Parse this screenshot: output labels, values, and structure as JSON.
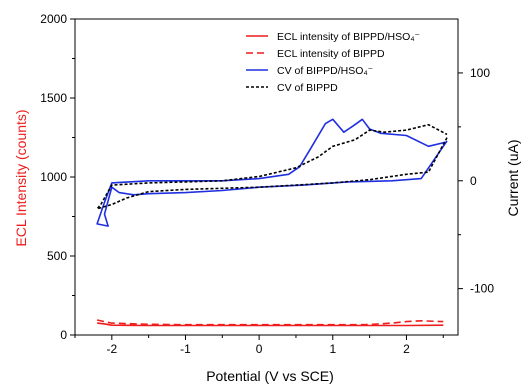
{
  "chart_data": {
    "type": "line",
    "xlabel": "Potential (V vs SCE)",
    "ylabel_left": "ECL Intensity (counts)",
    "ylabel_right": "Current (uA)",
    "xlim": [
      -2.5,
      2.7
    ],
    "ylim_left": [
      0,
      2000
    ],
    "ylim_right": [
      -143,
      150
    ],
    "x_ticks": [
      "-2",
      "-1",
      "0",
      "1",
      "2"
    ],
    "y_left_ticks": [
      "0",
      "500",
      "1000",
      "1500",
      "2000"
    ],
    "y_right_ticks": [
      "-100",
      "0",
      "100"
    ],
    "grid": false,
    "legend_position": "top-right",
    "colors": {
      "ecl_hso4": "#ee1c1c",
      "ecl_bippd": "#ee1c1c",
      "cv_hso4": "#1f2fe0",
      "cv_bippd": "#000000",
      "left_axis_label": "#ee1c1c"
    },
    "series": [
      {
        "name": "ECL intensity of BIPPD/HSO₄⁻",
        "axis": "left",
        "style": "solid",
        "x": [
          -2.2,
          -2.1,
          -2.0,
          -1.5,
          -1.0,
          -0.5,
          0.0,
          0.5,
          1.0,
          1.5,
          2.0,
          2.5
        ],
        "y": [
          75,
          70,
          62,
          60,
          60,
          60,
          60,
          60,
          60,
          60,
          60,
          62
        ]
      },
      {
        "name": "ECL intensity of BIPPD",
        "axis": "left",
        "style": "dashed",
        "x": [
          -2.2,
          -2.1,
          -2.0,
          -1.5,
          -1.0,
          -0.5,
          0.0,
          0.5,
          1.0,
          1.5,
          1.8,
          2.0,
          2.2,
          2.5
        ],
        "y": [
          95,
          85,
          75,
          68,
          65,
          65,
          65,
          65,
          65,
          66,
          75,
          85,
          90,
          85
        ]
      },
      {
        "name": "CV of BIPPD/HSO₄⁻",
        "axis": "right",
        "style": "solid",
        "x": [
          2.55,
          2.2,
          1.8,
          1.2,
          0.6,
          0.0,
          -0.5,
          -1.0,
          -1.5,
          -1.7,
          -1.9,
          -2.0,
          -2.1,
          -2.05,
          -2.2,
          -2.1,
          -2.0,
          -1.5,
          -1.0,
          -0.5,
          0.0,
          0.4,
          0.55,
          0.7,
          0.9,
          1.0,
          1.15,
          1.3,
          1.4,
          1.5,
          1.65,
          2.0,
          2.3,
          2.55
        ],
        "y": [
          37,
          2,
          0,
          -1,
          -4,
          -6,
          -9,
          -11,
          -12,
          -13,
          -11,
          -6,
          -31,
          -42,
          -40,
          -20,
          -2,
          0,
          0,
          0,
          2,
          6,
          13,
          30,
          53,
          57,
          45,
          52,
          57,
          48,
          44,
          42,
          32,
          36
        ]
      },
      {
        "name": "CV of BIPPD",
        "axis": "right",
        "style": "dotted",
        "x": [
          2.55,
          2.3,
          2.0,
          1.5,
          1.0,
          0.5,
          0.0,
          -0.5,
          -1.0,
          -1.5,
          -1.8,
          -2.0,
          -2.2,
          -2.15,
          -2.0,
          -1.5,
          -1.0,
          -0.5,
          0.0,
          0.5,
          0.8,
          1.0,
          1.3,
          1.5,
          1.7,
          2.0,
          2.3,
          2.55
        ],
        "y": [
          40,
          8,
          6,
          1,
          -2,
          -4,
          -6,
          -7,
          -8,
          -10,
          -16,
          -22,
          -26,
          -22,
          -4,
          -2,
          -1,
          0,
          4,
          12,
          22,
          32,
          38,
          47,
          45,
          47,
          52,
          43
        ]
      }
    ]
  }
}
